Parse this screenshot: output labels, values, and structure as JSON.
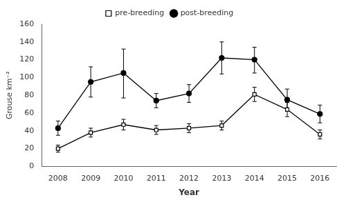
{
  "chart_data": {
    "type": "line",
    "x": [
      2008,
      2009,
      2010,
      2011,
      2012,
      2013,
      2014,
      2015,
      2016
    ],
    "series": [
      {
        "name": "pre-breeding",
        "color": "#000000",
        "marker": "open_square",
        "line_style": "solid",
        "values": [
          20,
          38,
          47,
          41,
          43,
          46,
          81,
          64,
          36
        ],
        "err_low": [
          4,
          5,
          6,
          5,
          5,
          5,
          8,
          8,
          5
        ],
        "err_high": [
          4,
          5,
          6,
          5,
          5,
          5,
          8,
          8,
          5
        ]
      },
      {
        "name": "post-breeding",
        "color": "#000000",
        "marker": "filled_circle",
        "line_style": "solid",
        "values": [
          43,
          95,
          105,
          74,
          82,
          122,
          120,
          75,
          59
        ],
        "err_low": [
          8,
          17,
          28,
          8,
          10,
          18,
          15,
          10,
          10
        ],
        "err_high": [
          8,
          17,
          27,
          8,
          10,
          18,
          14,
          12,
          10
        ]
      }
    ],
    "xlim": [
      2007.5,
      2016.5
    ],
    "xticks": [
      2008,
      2009,
      2010,
      2011,
      2012,
      2013,
      2014,
      2015,
      2016
    ],
    "ylim": [
      0,
      160
    ],
    "yticks": [
      0,
      20,
      40,
      60,
      80,
      100,
      120,
      140,
      160
    ],
    "xlabel": "Year",
    "ylabel": "Grouse km⁻²",
    "legend": "top",
    "grid": false
  }
}
